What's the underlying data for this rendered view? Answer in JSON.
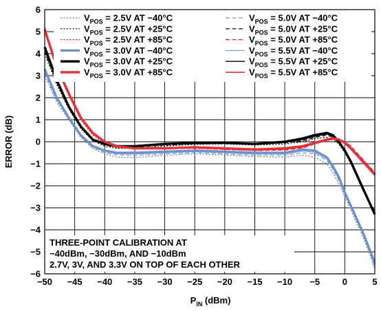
{
  "chart_data": {
    "type": "line",
    "xlabel": "P",
    "xlabel_sub": "IN",
    "xlabel_unit": " (dBm)",
    "ylabel": "ERROR (dB)",
    "xlim": [
      -50,
      5
    ],
    "ylim": [
      -6,
      6
    ],
    "xticks": [
      -50,
      -45,
      -40,
      -35,
      -30,
      -25,
      -20,
      -15,
      -10,
      -5,
      0,
      5
    ],
    "yticks": [
      6,
      5,
      4,
      3,
      2,
      1,
      0,
      -1,
      -2,
      -3,
      -4,
      -5,
      -6
    ],
    "xtick_labels": [
      "−50",
      "−45",
      "−40",
      "−35",
      "−30",
      "−25",
      "−20",
      "−15",
      "−10",
      "−5",
      "0",
      "5"
    ],
    "ytick_labels": [
      "6",
      "5",
      "4",
      "3",
      "2",
      "1",
      "0",
      "−1",
      "−2",
      "−3",
      "−4",
      "−5",
      "−6"
    ],
    "grid": true,
    "legend_position": "top",
    "annotation": [
      "THREE-POINT CALIBRATION AT",
      "−40dBm, −30dBm, AND −10dBm",
      "2.7V, 3V, AND 3.3V ON TOP OF EACH OTHER"
    ],
    "series": [
      {
        "label": {
          "pre": "V",
          "sub": "POS",
          "post": " = 2.5V AT −40°C"
        },
        "color": "#5b7fbf",
        "style": "dotted",
        "width": 1.2,
        "x": [
          -50,
          -48,
          -46,
          -44,
          -42,
          -40,
          -38,
          -35,
          -30,
          -25,
          -20,
          -15,
          -10,
          -7,
          -5,
          -3,
          -2,
          -1,
          0,
          1,
          2,
          3,
          4,
          5
        ],
        "y": [
          3.0,
          1.8,
          1.0,
          0.2,
          -0.3,
          -0.55,
          -0.7,
          -0.72,
          -0.62,
          -0.55,
          -0.6,
          -0.68,
          -0.7,
          -0.6,
          -0.7,
          -1.0,
          -1.4,
          -1.9,
          -2.5,
          -3.1,
          -3.7,
          -4.3,
          -5.0,
          -5.8
        ]
      },
      {
        "label": {
          "pre": "V",
          "sub": "POS",
          "post": " = 2.5V AT +25°C"
        },
        "color": "#000000",
        "style": "dotted",
        "width": 1.2,
        "x": [
          -50,
          -48,
          -46,
          -44,
          -42,
          -40,
          -38,
          -35,
          -30,
          -25,
          -20,
          -15,
          -10,
          -7,
          -5,
          -3,
          -2,
          -1,
          0,
          1,
          2,
          3,
          4,
          5
        ],
        "y": [
          4.0,
          2.6,
          1.5,
          0.6,
          0.05,
          -0.2,
          -0.3,
          -0.3,
          -0.2,
          -0.12,
          -0.1,
          -0.15,
          -0.1,
          0.0,
          0.15,
          0.2,
          0.1,
          -0.1,
          -0.5,
          -1.0,
          -1.6,
          -2.2,
          -2.7,
          -3.2
        ]
      },
      {
        "label": {
          "pre": "V",
          "sub": "POS",
          "post": " = 2.5V AT +85°C"
        },
        "color": "#e02020",
        "style": "dotted",
        "width": 1.2,
        "x": [
          -50,
          -48,
          -46,
          -44,
          -42,
          -40,
          -38,
          -35,
          -30,
          -25,
          -20,
          -15,
          -10,
          -7,
          -5,
          -3,
          -2,
          -1,
          0,
          1,
          2,
          3,
          4,
          5
        ],
        "y": [
          5.0,
          3.3,
          2.1,
          1.0,
          0.3,
          -0.1,
          -0.25,
          -0.3,
          -0.3,
          -0.3,
          -0.35,
          -0.4,
          -0.35,
          -0.25,
          -0.1,
          0.05,
          0.1,
          0.1,
          0.0,
          -0.2,
          -0.5,
          -0.8,
          -1.1,
          -1.4
        ]
      },
      {
        "label": {
          "pre": "V",
          "sub": "POS",
          "post": " = 3.0V AT −40°C"
        },
        "color": "#6f8fc8",
        "style": "solid",
        "width": 3.2,
        "x": [
          -50,
          -48,
          -46,
          -44,
          -42,
          -40,
          -38,
          -35,
          -30,
          -25,
          -20,
          -15,
          -10,
          -7,
          -5,
          -3,
          -2,
          -1,
          0,
          1,
          2,
          3,
          4,
          5
        ],
        "y": [
          3.3,
          2.0,
          1.1,
          0.3,
          -0.2,
          -0.4,
          -0.5,
          -0.5,
          -0.45,
          -0.4,
          -0.45,
          -0.5,
          -0.5,
          -0.35,
          -0.4,
          -0.7,
          -1.1,
          -1.6,
          -2.3,
          -2.9,
          -3.5,
          -4.1,
          -4.8,
          -5.5
        ]
      },
      {
        "label": {
          "pre": "V",
          "sub": "POS",
          "post": " = 3.0V AT +25°C"
        },
        "color": "#000000",
        "style": "solid",
        "width": 3.4,
        "x": [
          -50,
          -48,
          -46,
          -44,
          -42,
          -40,
          -38,
          -35,
          -30,
          -25,
          -20,
          -15,
          -10,
          -7,
          -5,
          -4,
          -3,
          -2,
          -1,
          0,
          1,
          2,
          3,
          4,
          5
        ],
        "y": [
          4.3,
          2.8,
          1.6,
          0.7,
          0.1,
          -0.1,
          -0.2,
          -0.2,
          -0.1,
          -0.05,
          -0.05,
          -0.1,
          0.0,
          0.15,
          0.3,
          0.35,
          0.4,
          0.3,
          0.0,
          -0.4,
          -0.9,
          -1.5,
          -2.1,
          -2.7,
          -3.3
        ]
      },
      {
        "label": {
          "pre": "V",
          "sub": "POS",
          "post": " = 3.0V AT +85°C"
        },
        "color": "#e8303a",
        "style": "solid",
        "width": 3.4,
        "x": [
          -50,
          -48,
          -46,
          -44,
          -42,
          -40,
          -38,
          -35,
          -30,
          -25,
          -20,
          -15,
          -10,
          -7,
          -5,
          -3,
          -2,
          -1,
          0,
          1,
          2,
          3,
          4,
          5
        ],
        "y": [
          5.1,
          3.4,
          2.2,
          1.1,
          0.4,
          0.0,
          -0.2,
          -0.3,
          -0.3,
          -0.25,
          -0.3,
          -0.35,
          -0.3,
          -0.2,
          -0.05,
          0.1,
          0.15,
          0.1,
          -0.05,
          -0.3,
          -0.6,
          -0.9,
          -1.2,
          -1.5
        ]
      },
      {
        "label": {
          "pre": "V",
          "sub": "POS",
          "post": " = 5.0V AT −40°C"
        },
        "color": "#7e9ccf",
        "style": "dashed",
        "width": 1.2,
        "x": [
          -50,
          -48,
          -46,
          -44,
          -42,
          -40,
          -38,
          -35,
          -30,
          -25,
          -20,
          -15,
          -10,
          -7,
          -5,
          -3,
          -2,
          -1,
          0,
          1,
          2,
          3,
          4,
          5
        ],
        "y": [
          3.1,
          1.9,
          1.05,
          0.25,
          -0.25,
          -0.5,
          -0.6,
          -0.62,
          -0.55,
          -0.5,
          -0.55,
          -0.62,
          -0.62,
          -0.5,
          -0.55,
          -0.85,
          -1.25,
          -1.75,
          -2.4,
          -3.0,
          -3.6,
          -4.2,
          -4.9,
          -5.7
        ]
      },
      {
        "label": {
          "pre": "V",
          "sub": "POS",
          "post": " = 5.0V AT +25°C"
        },
        "color": "#000000",
        "style": "dashed",
        "width": 1.2,
        "x": [
          -50,
          -48,
          -46,
          -44,
          -42,
          -40,
          -38,
          -35,
          -30,
          -25,
          -20,
          -15,
          -10,
          -7,
          -5,
          -3,
          -2,
          -1,
          0,
          1,
          2,
          3,
          4,
          5
        ],
        "y": [
          4.1,
          2.7,
          1.55,
          0.65,
          0.08,
          -0.15,
          -0.25,
          -0.25,
          -0.15,
          -0.1,
          -0.08,
          -0.12,
          -0.05,
          0.05,
          0.2,
          0.3,
          0.2,
          -0.05,
          -0.45,
          -0.95,
          -1.55,
          -2.15,
          -2.65,
          -3.15
        ]
      },
      {
        "label": {
          "pre": "V",
          "sub": "POS",
          "post": " = 5.0V AT +85°C"
        },
        "color": "#e02020",
        "style": "dashed",
        "width": 1.2,
        "x": [
          -50,
          -48,
          -46,
          -44,
          -42,
          -40,
          -38,
          -35,
          -30,
          -25,
          -20,
          -15,
          -10,
          -7,
          -5,
          -3,
          -2,
          -1,
          0,
          1,
          2,
          3,
          4,
          5
        ],
        "y": [
          5.2,
          3.4,
          2.2,
          1.05,
          0.35,
          -0.05,
          -0.25,
          -0.32,
          -0.32,
          -0.3,
          -0.35,
          -0.4,
          -0.38,
          -0.28,
          -0.1,
          0.05,
          0.12,
          0.12,
          0.02,
          -0.2,
          -0.5,
          -0.8,
          -1.1,
          -1.4
        ]
      },
      {
        "label": {
          "pre": "V",
          "sub": "POS",
          "post": " = 5.5V AT −40°C"
        },
        "color": "#8aa6d4",
        "style": "solid",
        "width": 1.4,
        "x": [
          -50,
          -48,
          -46,
          -44,
          -42,
          -40,
          -38,
          -35,
          -30,
          -25,
          -20,
          -15,
          -10,
          -7,
          -5,
          -3,
          -2,
          -1,
          0,
          1,
          2,
          3,
          4,
          5
        ],
        "y": [
          3.2,
          1.95,
          1.05,
          0.28,
          -0.22,
          -0.45,
          -0.55,
          -0.56,
          -0.5,
          -0.45,
          -0.5,
          -0.56,
          -0.56,
          -0.42,
          -0.48,
          -0.78,
          -1.18,
          -1.68,
          -2.35,
          -2.95,
          -3.55,
          -4.15,
          -4.85,
          -5.6
        ]
      },
      {
        "label": {
          "pre": "V",
          "sub": "POS",
          "post": " = 5.5V AT +25°C"
        },
        "color": "#000000",
        "style": "solid",
        "width": 1.4,
        "x": [
          -50,
          -48,
          -46,
          -44,
          -42,
          -40,
          -38,
          -35,
          -30,
          -25,
          -20,
          -15,
          -10,
          -7,
          -5,
          -3,
          -2,
          -1,
          0,
          1,
          2,
          3,
          4,
          5
        ],
        "y": [
          4.2,
          2.75,
          1.58,
          0.68,
          0.09,
          -0.12,
          -0.22,
          -0.22,
          -0.12,
          -0.07,
          -0.06,
          -0.1,
          -0.02,
          0.1,
          0.25,
          0.35,
          0.25,
          0.0,
          -0.42,
          -0.92,
          -1.52,
          -2.12,
          -2.68,
          -3.25
        ]
      },
      {
        "label": {
          "pre": "V",
          "sub": "POS",
          "post": " = 5.5V AT +85°C"
        },
        "color": "#e02020",
        "style": "solid",
        "width": 1.4,
        "x": [
          -50,
          -48,
          -46,
          -44,
          -42,
          -40,
          -38,
          -35,
          -30,
          -25,
          -20,
          -15,
          -10,
          -7,
          -5,
          -3,
          -2,
          -1,
          0,
          1,
          2,
          3,
          4,
          5
        ],
        "y": [
          5.15,
          3.35,
          2.15,
          1.08,
          0.38,
          -0.02,
          -0.22,
          -0.3,
          -0.3,
          -0.28,
          -0.32,
          -0.38,
          -0.34,
          -0.24,
          -0.08,
          0.08,
          0.14,
          0.1,
          -0.02,
          -0.25,
          -0.55,
          -0.85,
          -1.15,
          -1.45
        ]
      }
    ]
  }
}
